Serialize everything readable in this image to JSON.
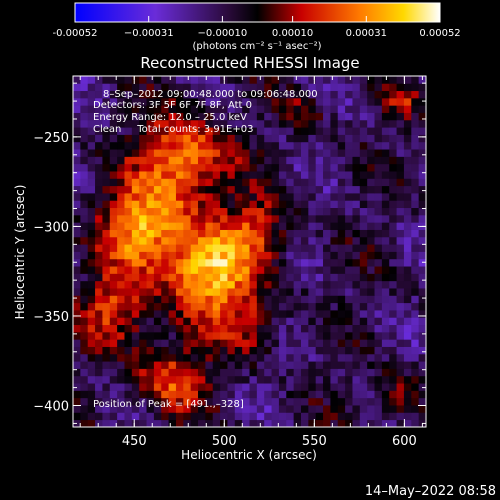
{
  "chart_data": {
    "type": "heatmap",
    "title": "Reconstructed RHESSI Image",
    "xlabel": "Heliocentric X (arcsec)",
    "ylabel": "Heliocentric Y (arcsec)",
    "xlim": [
      416,
      612
    ],
    "ylim": [
      -412,
      -216
    ],
    "x_ticks": [
      450,
      500,
      550,
      600
    ],
    "y_ticks": [
      -250,
      -300,
      -350,
      -400
    ],
    "colorbar": {
      "range": [
        -0.00052,
        0.00052
      ],
      "tick_values": [
        -0.00052,
        -0.00031,
        -0.0001,
        0.0001,
        0.00031,
        0.00052
      ],
      "tick_labels": [
        "-0.00052",
        "−0.00031",
        "−0.00010",
        "0.00010",
        "0.00031",
        "0.00052"
      ],
      "unit_label": "(photons cm⁻² s⁻¹ asec⁻²)",
      "colormap": "blue-purple-black-red-orange-yellow-white"
    },
    "annotations": [
      "8–Sep–2012 09:00:48.000 to 09:06:48.000",
      "Detectors: 3F 5F 6F 7F 8F, Att 0",
      "Energy Range: 12.0 – 25.0 keV",
      "Clean     Total counts: 3.91E+03"
    ],
    "peak_label": "Position of Peak = [491.,–328]",
    "peak": {
      "x": 491,
      "y": -328
    },
    "sources": [
      {
        "x": 492,
        "y": -325,
        "sigma": 18,
        "amp": 1.0
      },
      {
        "x": 455,
        "y": -300,
        "sigma": 16,
        "amp": 0.9
      },
      {
        "x": 478,
        "y": -262,
        "sigma": 17,
        "amp": 0.85
      },
      {
        "x": 440,
        "y": -345,
        "sigma": 14,
        "amp": 0.55
      },
      {
        "x": 470,
        "y": -385,
        "sigma": 14,
        "amp": 0.6
      },
      {
        "x": 520,
        "y": -300,
        "sigma": 12,
        "amp": 0.45
      },
      {
        "x": 515,
        "y": -355,
        "sigma": 12,
        "amp": 0.35
      },
      {
        "x": 595,
        "y": -395,
        "sigma": 9,
        "amp": 0.4
      },
      {
        "x": 598,
        "y": -230,
        "sigma": 7,
        "amp": 0.35
      },
      {
        "x": 545,
        "y": -235,
        "sigma": 7,
        "amp": 0.3
      }
    ]
  },
  "timestamp": "14–May–2022 08:58"
}
